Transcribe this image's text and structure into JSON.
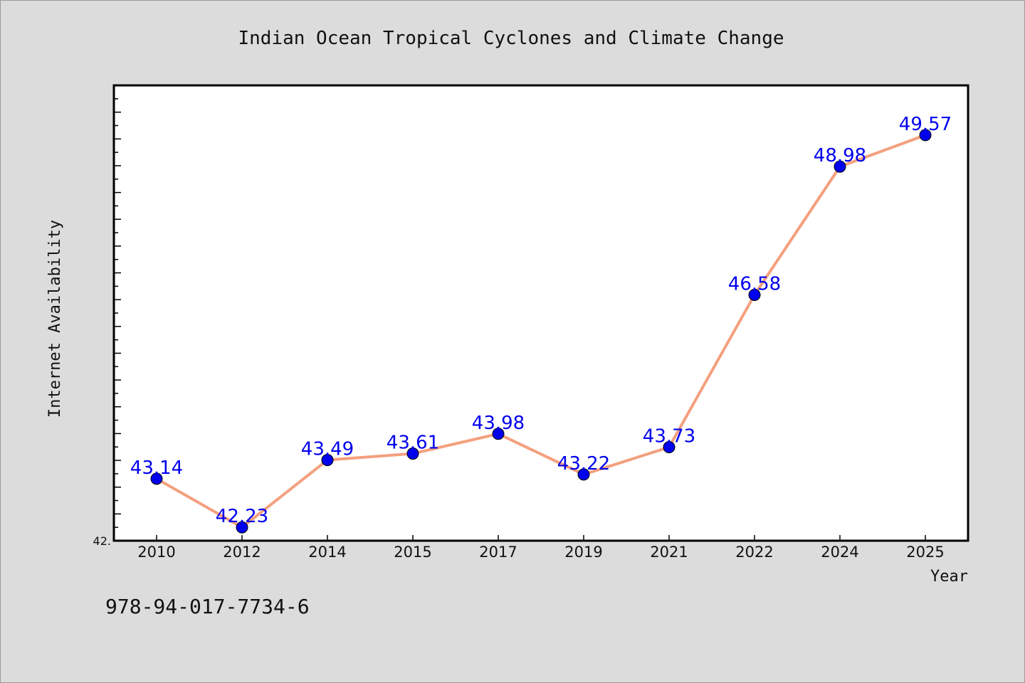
{
  "chart_data": {
    "type": "line",
    "title": "Indian Ocean Tropical Cyclones and Climate Change",
    "xlabel": "Year",
    "ylabel": "Internet Availability",
    "categories": [
      "2010",
      "2012",
      "2014",
      "2015",
      "2017",
      "2019",
      "2021",
      "2022",
      "2024",
      "2025"
    ],
    "series": [
      {
        "values": [
          43.14,
          42.23,
          43.49,
          43.61,
          43.98,
          43.22,
          43.73,
          46.58,
          48.98,
          49.57
        ]
      }
    ],
    "y_tick_label": "42.",
    "ylim": [
      41.98,
      50.5
    ],
    "grid": false,
    "line_color": "#f4a07e",
    "marker_color": "#0000ee",
    "label_color": "#0000ee",
    "plot_background": "#ffffff"
  },
  "footer": {
    "code": "978-94-017-7734-6"
  }
}
